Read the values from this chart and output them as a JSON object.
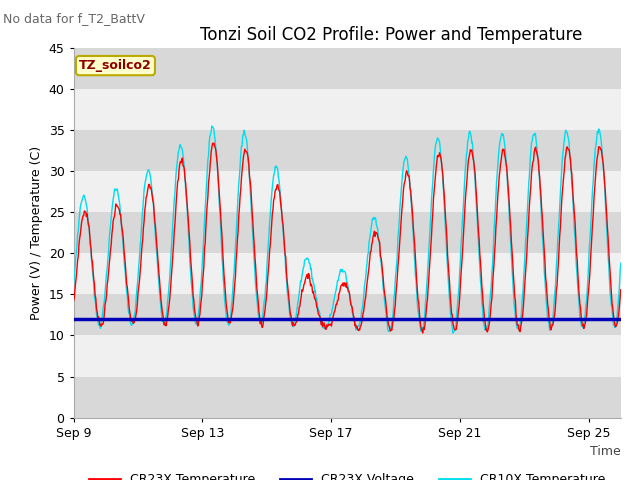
{
  "title": "Tonzi Soil CO2 Profile: Power and Temperature",
  "no_data_text": "No data for f_T2_BattV",
  "ylabel": "Power (V) / Temperature (C)",
  "xlabel": "Time",
  "ylim": [
    0,
    45
  ],
  "yticks": [
    0,
    5,
    10,
    15,
    20,
    25,
    30,
    35,
    40,
    45
  ],
  "xtick_labels": [
    "Sep 9",
    "Sep 13",
    "Sep 17",
    "Sep 21",
    "Sep 25"
  ],
  "xtick_positions": [
    0,
    4,
    8,
    12,
    16
  ],
  "legend_label": "TZ_soilco2",
  "line_labels": [
    "CR23X Temperature",
    "CR23X Voltage",
    "CR10X Temperature"
  ],
  "line_colors": [
    "#ff0000",
    "#0000bb",
    "#00ddee"
  ],
  "voltage_value": 12.0,
  "background_color": "#ffffff",
  "plot_bg_color": "#ebebeb",
  "band_color_dark": "#d8d8d8",
  "band_color_light": "#f0f0f0",
  "legend_box_color": "#ffffcc",
  "legend_box_edge": "#bbaa00",
  "title_fontsize": 12,
  "label_fontsize": 9,
  "tick_fontsize": 9,
  "annotation_fontsize": 9,
  "xlim": [
    0,
    17
  ]
}
